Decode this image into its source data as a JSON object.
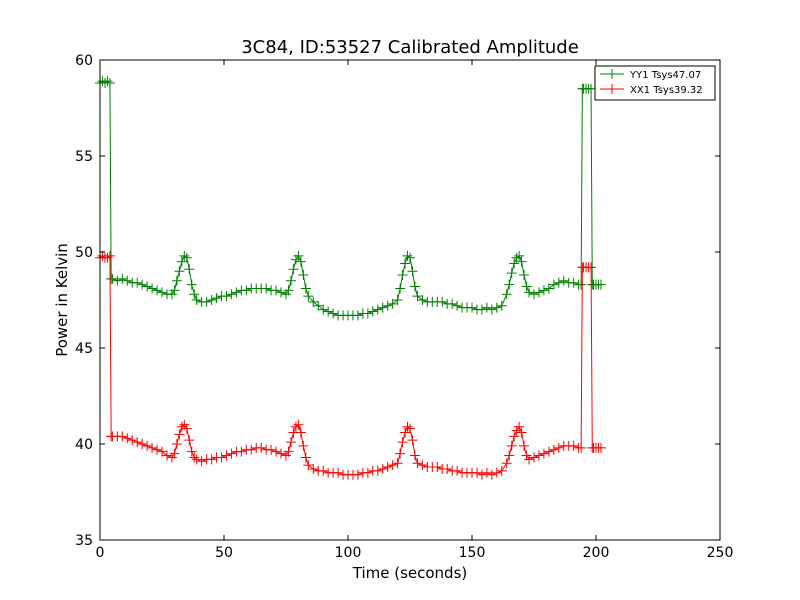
{
  "chart_data": {
    "type": "line",
    "title": "3C84, ID:53527 Calibrated Amplitude",
    "xlabel": "Time (seconds)",
    "ylabel": "Power in Kelvin",
    "xlim": [
      0,
      250
    ],
    "ylim": [
      35,
      60
    ],
    "xticks": [
      0,
      50,
      100,
      150,
      200,
      250
    ],
    "yticks": [
      35,
      40,
      45,
      50,
      55,
      60
    ],
    "grid": false,
    "legend_position": "top-right",
    "marker": "+",
    "series": [
      {
        "name": "YY1 Tsys47.07",
        "color": "#008000",
        "points": [
          [
            0,
            58.8
          ],
          [
            1,
            58.9
          ],
          [
            2,
            58.8
          ],
          [
            3,
            58.9
          ],
          [
            4,
            58.8
          ],
          [
            4.5,
            48.6
          ],
          [
            5,
            48.6
          ],
          [
            7,
            48.5
          ],
          [
            9,
            48.6
          ],
          [
            11,
            48.5
          ],
          [
            13,
            48.4
          ],
          [
            15,
            48.4
          ],
          [
            17,
            48.3
          ],
          [
            19,
            48.2
          ],
          [
            21,
            48.1
          ],
          [
            23,
            48.0
          ],
          [
            25,
            47.9
          ],
          [
            27,
            47.8
          ],
          [
            29,
            47.8
          ],
          [
            30,
            48.0
          ],
          [
            31,
            48.5
          ],
          [
            32,
            49.0
          ],
          [
            33,
            49.5
          ],
          [
            34,
            49.8
          ],
          [
            35,
            49.7
          ],
          [
            36,
            49.1
          ],
          [
            37,
            48.3
          ],
          [
            38,
            47.8
          ],
          [
            39,
            47.5
          ],
          [
            41,
            47.4
          ],
          [
            43,
            47.4
          ],
          [
            45,
            47.5
          ],
          [
            47,
            47.6
          ],
          [
            49,
            47.7
          ],
          [
            51,
            47.7
          ],
          [
            53,
            47.8
          ],
          [
            55,
            47.9
          ],
          [
            57,
            48.0
          ],
          [
            59,
            48.0
          ],
          [
            61,
            48.1
          ],
          [
            63,
            48.1
          ],
          [
            65,
            48.1
          ],
          [
            67,
            48.1
          ],
          [
            69,
            48.0
          ],
          [
            71,
            48.0
          ],
          [
            73,
            47.9
          ],
          [
            75,
            47.8
          ],
          [
            76,
            48.0
          ],
          [
            77,
            48.5
          ],
          [
            78,
            49.1
          ],
          [
            79,
            49.6
          ],
          [
            80,
            49.8
          ],
          [
            81,
            49.5
          ],
          [
            82,
            48.8
          ],
          [
            83,
            48.1
          ],
          [
            84,
            47.7
          ],
          [
            86,
            47.4
          ],
          [
            88,
            47.2
          ],
          [
            90,
            47.0
          ],
          [
            92,
            46.9
          ],
          [
            94,
            46.8
          ],
          [
            96,
            46.7
          ],
          [
            98,
            46.7
          ],
          [
            100,
            46.7
          ],
          [
            102,
            46.7
          ],
          [
            104,
            46.7
          ],
          [
            106,
            46.8
          ],
          [
            108,
            46.8
          ],
          [
            110,
            46.9
          ],
          [
            112,
            47.0
          ],
          [
            114,
            47.1
          ],
          [
            116,
            47.2
          ],
          [
            118,
            47.3
          ],
          [
            120,
            47.5
          ],
          [
            121,
            48.1
          ],
          [
            122,
            48.8
          ],
          [
            123,
            49.4
          ],
          [
            124,
            49.8
          ],
          [
            125,
            49.7
          ],
          [
            126,
            49.0
          ],
          [
            127,
            48.2
          ],
          [
            128,
            47.7
          ],
          [
            130,
            47.5
          ],
          [
            132,
            47.4
          ],
          [
            134,
            47.4
          ],
          [
            136,
            47.4
          ],
          [
            138,
            47.4
          ],
          [
            140,
            47.3
          ],
          [
            142,
            47.3
          ],
          [
            144,
            47.2
          ],
          [
            146,
            47.1
          ],
          [
            148,
            47.1
          ],
          [
            150,
            47.1
          ],
          [
            152,
            47.0
          ],
          [
            154,
            47.0
          ],
          [
            156,
            47.1
          ],
          [
            158,
            47.0
          ],
          [
            160,
            47.1
          ],
          [
            162,
            47.2
          ],
          [
            164,
            47.8
          ],
          [
            165,
            48.3
          ],
          [
            166,
            48.9
          ],
          [
            167,
            49.4
          ],
          [
            168,
            49.7
          ],
          [
            169,
            49.8
          ],
          [
            170,
            49.5
          ],
          [
            171,
            48.8
          ],
          [
            172,
            48.2
          ],
          [
            173,
            47.9
          ],
          [
            175,
            47.8
          ],
          [
            177,
            47.9
          ],
          [
            179,
            48.0
          ],
          [
            181,
            48.1
          ],
          [
            183,
            48.3
          ],
          [
            185,
            48.4
          ],
          [
            187,
            48.5
          ],
          [
            189,
            48.4
          ],
          [
            191,
            48.4
          ],
          [
            193,
            48.3
          ],
          [
            194,
            48.3
          ],
          [
            194.5,
            58.5
          ],
          [
            195,
            58.5
          ],
          [
            196,
            58.5
          ],
          [
            197,
            58.5
          ],
          [
            198,
            58.5
          ],
          [
            198.5,
            48.3
          ],
          [
            199,
            48.3
          ],
          [
            200,
            48.3
          ],
          [
            201,
            48.3
          ],
          [
            202,
            48.3
          ]
        ]
      },
      {
        "name": "XX1 Tsys39.32",
        "color": "#ff0000",
        "points": [
          [
            0,
            49.7
          ],
          [
            1,
            49.8
          ],
          [
            2,
            49.7
          ],
          [
            3,
            49.7
          ],
          [
            4,
            49.8
          ],
          [
            4.5,
            40.4
          ],
          [
            5,
            40.4
          ],
          [
            7,
            40.4
          ],
          [
            9,
            40.4
          ],
          [
            11,
            40.3
          ],
          [
            13,
            40.2
          ],
          [
            15,
            40.1
          ],
          [
            17,
            40.0
          ],
          [
            19,
            39.9
          ],
          [
            21,
            39.8
          ],
          [
            23,
            39.7
          ],
          [
            25,
            39.6
          ],
          [
            27,
            39.4
          ],
          [
            29,
            39.3
          ],
          [
            30,
            39.5
          ],
          [
            31,
            40.0
          ],
          [
            32,
            40.5
          ],
          [
            33,
            40.9
          ],
          [
            34,
            41.0
          ],
          [
            35,
            40.8
          ],
          [
            36,
            40.2
          ],
          [
            37,
            39.6
          ],
          [
            38,
            39.3
          ],
          [
            39,
            39.2
          ],
          [
            41,
            39.1
          ],
          [
            43,
            39.2
          ],
          [
            45,
            39.2
          ],
          [
            47,
            39.3
          ],
          [
            49,
            39.3
          ],
          [
            51,
            39.4
          ],
          [
            53,
            39.5
          ],
          [
            55,
            39.6
          ],
          [
            57,
            39.6
          ],
          [
            59,
            39.7
          ],
          [
            61,
            39.7
          ],
          [
            63,
            39.8
          ],
          [
            65,
            39.8
          ],
          [
            67,
            39.7
          ],
          [
            69,
            39.7
          ],
          [
            71,
            39.6
          ],
          [
            73,
            39.5
          ],
          [
            75,
            39.4
          ],
          [
            76,
            39.6
          ],
          [
            77,
            40.1
          ],
          [
            78,
            40.6
          ],
          [
            79,
            40.9
          ],
          [
            80,
            41.0
          ],
          [
            81,
            40.6
          ],
          [
            82,
            39.9
          ],
          [
            83,
            39.3
          ],
          [
            84,
            38.9
          ],
          [
            86,
            38.7
          ],
          [
            88,
            38.6
          ],
          [
            90,
            38.6
          ],
          [
            92,
            38.5
          ],
          [
            94,
            38.5
          ],
          [
            96,
            38.5
          ],
          [
            98,
            38.4
          ],
          [
            100,
            38.4
          ],
          [
            102,
            38.4
          ],
          [
            104,
            38.4
          ],
          [
            106,
            38.5
          ],
          [
            108,
            38.5
          ],
          [
            110,
            38.6
          ],
          [
            112,
            38.6
          ],
          [
            114,
            38.7
          ],
          [
            116,
            38.8
          ],
          [
            118,
            38.9
          ],
          [
            120,
            39.0
          ],
          [
            121,
            39.5
          ],
          [
            122,
            40.1
          ],
          [
            123,
            40.6
          ],
          [
            124,
            40.9
          ],
          [
            125,
            40.8
          ],
          [
            126,
            40.2
          ],
          [
            127,
            39.4
          ],
          [
            128,
            39.0
          ],
          [
            130,
            38.9
          ],
          [
            132,
            38.8
          ],
          [
            134,
            38.8
          ],
          [
            136,
            38.8
          ],
          [
            138,
            38.7
          ],
          [
            140,
            38.7
          ],
          [
            142,
            38.6
          ],
          [
            144,
            38.6
          ],
          [
            146,
            38.5
          ],
          [
            148,
            38.5
          ],
          [
            150,
            38.5
          ],
          [
            152,
            38.5
          ],
          [
            154,
            38.4
          ],
          [
            156,
            38.5
          ],
          [
            158,
            38.4
          ],
          [
            160,
            38.5
          ],
          [
            162,
            38.6
          ],
          [
            164,
            39.0
          ],
          [
            165,
            39.4
          ],
          [
            166,
            39.9
          ],
          [
            167,
            40.4
          ],
          [
            168,
            40.7
          ],
          [
            169,
            40.9
          ],
          [
            170,
            40.6
          ],
          [
            171,
            39.9
          ],
          [
            172,
            39.4
          ],
          [
            173,
            39.2
          ],
          [
            175,
            39.3
          ],
          [
            177,
            39.4
          ],
          [
            179,
            39.5
          ],
          [
            181,
            39.6
          ],
          [
            183,
            39.7
          ],
          [
            185,
            39.8
          ],
          [
            187,
            39.9
          ],
          [
            189,
            39.9
          ],
          [
            191,
            39.9
          ],
          [
            193,
            39.8
          ],
          [
            194,
            39.8
          ],
          [
            194.5,
            49.2
          ],
          [
            195,
            49.2
          ],
          [
            196,
            49.2
          ],
          [
            197,
            49.2
          ],
          [
            198,
            49.2
          ],
          [
            198.5,
            39.8
          ],
          [
            199,
            39.8
          ],
          [
            200,
            39.8
          ],
          [
            201,
            39.8
          ],
          [
            202,
            39.8
          ]
        ]
      }
    ]
  }
}
